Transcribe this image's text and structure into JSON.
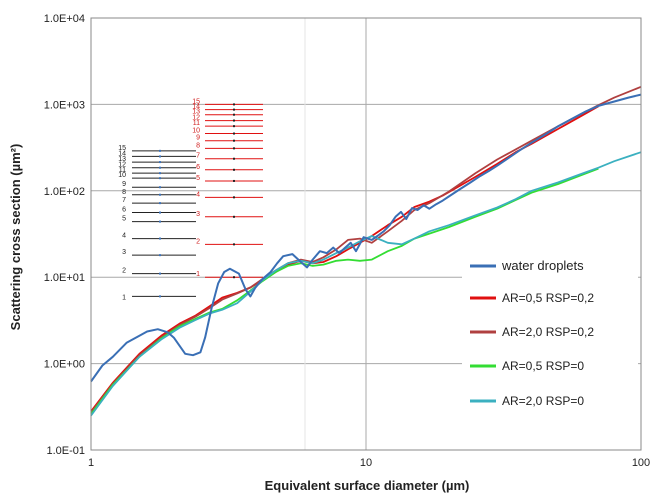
{
  "chart_data": {
    "type": "line",
    "x_scale": "log",
    "y_scale": "log",
    "xlim": [
      1,
      100
    ],
    "ylim": [
      0.1,
      10000
    ],
    "xlabel": "Equivalent surface diameter (µm)",
    "ylabel": "Scattering cross section (µm²)",
    "x_ticks": [
      {
        "value": 1,
        "label": "1"
      },
      {
        "value": 10,
        "label": "10"
      },
      {
        "value": 100,
        "label": "100"
      }
    ],
    "y_ticks": [
      {
        "value": 0.1,
        "label": "1.0E-01"
      },
      {
        "value": 1,
        "label": "1.0E+00"
      },
      {
        "value": 10,
        "label": "1.0E+01"
      },
      {
        "value": 100,
        "label": "1.0E+02"
      },
      {
        "value": 1000,
        "label": "1.0E+03"
      },
      {
        "value": 10000,
        "label": "1.0E+04"
      }
    ],
    "grid": true,
    "legend_position": "right",
    "series": [
      {
        "name": "water droplets",
        "color": "#3a6fb5",
        "x": [
          1.0,
          1.1,
          1.2,
          1.35,
          1.5,
          1.6,
          1.75,
          1.9,
          2.0,
          2.2,
          2.35,
          2.5,
          2.6,
          2.75,
          2.9,
          3.05,
          3.2,
          3.45,
          3.65,
          3.8,
          3.95,
          4.2,
          4.5,
          4.75,
          5.0,
          5.4,
          5.8,
          6.1,
          6.4,
          6.8,
          7.2,
          7.6,
          8.0,
          8.4,
          8.8,
          9.2,
          9.8,
          10.5,
          11.0,
          11.6,
          12.2,
          12.8,
          13.4,
          14.0,
          14.7,
          15.4,
          16.2,
          17.0,
          18.0,
          19.0,
          20.0,
          22.0,
          24.0,
          26.0,
          28.0,
          30.0,
          33.0,
          36.0,
          40.0,
          45.0,
          50.0,
          56.0,
          63.0,
          70.0,
          80.0,
          90.0,
          100.0
        ],
        "y": [
          0.62,
          0.95,
          1.2,
          1.75,
          2.1,
          2.35,
          2.5,
          2.3,
          2.0,
          1.3,
          1.25,
          1.35,
          2.0,
          4.5,
          8.5,
          11.5,
          12.5,
          11.0,
          7.2,
          6.0,
          7.5,
          9.5,
          11.5,
          14.5,
          17.5,
          18.5,
          15.0,
          13.0,
          16.0,
          20.0,
          19.0,
          22.0,
          19.0,
          22.0,
          25.0,
          20.0,
          29.0,
          27.0,
          30.0,
          34.0,
          40.0,
          50.0,
          57.0,
          47.0,
          63.0,
          60.0,
          68.0,
          62.0,
          70.0,
          77.0,
          86.0,
          105.0,
          125.0,
          148.0,
          170.0,
          195.0,
          240.0,
          290.0,
          360.0,
          450.0,
          560.0,
          680.0,
          830.0,
          960.0,
          1080.0,
          1200.0,
          1300.0
        ]
      },
      {
        "name": "AR=0,5 RSP=0,2",
        "color": "#e01010",
        "x": [
          1.0,
          1.2,
          1.5,
          1.8,
          2.1,
          2.4,
          2.7,
          3.0,
          3.4,
          3.8,
          4.2,
          4.7,
          5.2,
          5.8,
          6.4,
          7.0,
          7.8,
          8.6,
          9.5,
          10.5,
          12.0,
          13.5,
          15.0,
          17.0,
          19.0,
          22.0,
          25.0,
          30.0,
          35.0,
          40.0,
          50.0,
          60.0,
          70.0
        ],
        "y": [
          0.28,
          0.6,
          1.3,
          2.1,
          2.9,
          3.6,
          4.6,
          5.8,
          6.6,
          7.6,
          9.2,
          11.5,
          14.0,
          15.5,
          14.5,
          15.0,
          17.5,
          21.0,
          25.0,
          30.0,
          40.0,
          50.0,
          65.0,
          75.0,
          88.0,
          115.0,
          145.0,
          205.0,
          280.0,
          350.0,
          520.0,
          720.0,
          950.0
        ]
      },
      {
        "name": "AR=2,0 RSP=0,2",
        "color": "#b04040",
        "x": [
          1.0,
          1.2,
          1.5,
          1.8,
          2.1,
          2.4,
          2.7,
          3.0,
          3.4,
          3.8,
          4.2,
          4.7,
          5.2,
          5.8,
          6.4,
          7.0,
          7.8,
          8.6,
          9.5,
          10.5,
          12.0,
          13.5,
          15.0,
          17.0,
          20.0,
          25.0,
          30.0,
          40.0,
          50.0,
          60.0,
          70.0,
          80.0,
          100.0
        ],
        "y": [
          0.27,
          0.58,
          1.25,
          2.0,
          2.8,
          3.5,
          4.4,
          5.5,
          6.5,
          7.6,
          9.5,
          12.0,
          14.5,
          16.0,
          15.0,
          17.0,
          21.0,
          27.0,
          28.0,
          25.0,
          34.0,
          45.0,
          60.0,
          72.0,
          98.0,
          160.0,
          230.0,
          380.0,
          560.0,
          760.0,
          980.0,
          1200.0,
          1600.0
        ]
      },
      {
        "name": "AR=0,5 RSP=0",
        "color": "#33dd33",
        "x": [
          1.0,
          1.2,
          1.5,
          1.8,
          2.1,
          2.4,
          2.7,
          3.0,
          3.4,
          3.8,
          4.2,
          4.7,
          5.2,
          5.8,
          6.4,
          7.0,
          7.8,
          8.6,
          9.5,
          10.5,
          12.0,
          13.5,
          15.0,
          17.0,
          20.0,
          25.0,
          30.0,
          35.0,
          40.0,
          50.0,
          60.0,
          70.0
        ],
        "y": [
          0.26,
          0.57,
          1.2,
          1.95,
          2.7,
          3.3,
          3.9,
          4.3,
          5.4,
          7.0,
          9.0,
          11.5,
          13.5,
          14.5,
          13.5,
          14.0,
          15.5,
          16.0,
          15.5,
          16.0,
          20.0,
          23.0,
          28.0,
          32.0,
          38.0,
          50.0,
          62.0,
          78.0,
          95.0,
          120.0,
          150.0,
          180.0
        ]
      },
      {
        "name": "AR=2,0 RSP=0",
        "color": "#3bb0c0",
        "x": [
          1.0,
          1.2,
          1.5,
          1.8,
          2.1,
          2.4,
          2.7,
          3.0,
          3.4,
          3.8,
          4.2,
          4.7,
          5.2,
          5.8,
          6.4,
          7.0,
          7.8,
          8.6,
          9.5,
          10.5,
          12.0,
          13.5,
          15.0,
          17.0,
          20.0,
          25.0,
          30.0,
          35.0,
          40.0,
          50.0,
          60.0,
          70.0,
          80.0,
          100.0
        ],
        "y": [
          0.25,
          0.55,
          1.2,
          1.9,
          2.6,
          3.2,
          3.8,
          4.2,
          5.0,
          6.8,
          9.2,
          12.0,
          14.5,
          15.5,
          14.5,
          16.0,
          19.0,
          22.0,
          26.0,
          30.0,
          25.0,
          24.0,
          28.0,
          34.0,
          40.0,
          52.0,
          64.0,
          80.0,
          100.0,
          125.0,
          155.0,
          185.0,
          220.0,
          280.0
        ]
      }
    ],
    "inset_black_labels": [
      "1",
      "2",
      "3",
      "4",
      "5",
      "6",
      "7",
      "8",
      "9",
      "10",
      "11",
      "12",
      "13",
      "14",
      "15"
    ],
    "inset_black_values": [
      6.0,
      11.0,
      18.0,
      28.0,
      44.0,
      56.0,
      72.0,
      90.0,
      110.0,
      140.0,
      160.0,
      185.0,
      215.0,
      250.0,
      290.0
    ],
    "inset_red_labels": [
      "1",
      "2",
      "3",
      "4",
      "5",
      "6",
      "7",
      "8",
      "9",
      "10",
      "11",
      "12",
      "13",
      "14",
      "15"
    ],
    "inset_red_values": [
      10.0,
      24.0,
      50.0,
      84.0,
      130.0,
      175.0,
      235.0,
      310.0,
      380.0,
      460.0,
      560.0,
      650.0,
      760.0,
      870.0,
      1000.0
    ]
  }
}
